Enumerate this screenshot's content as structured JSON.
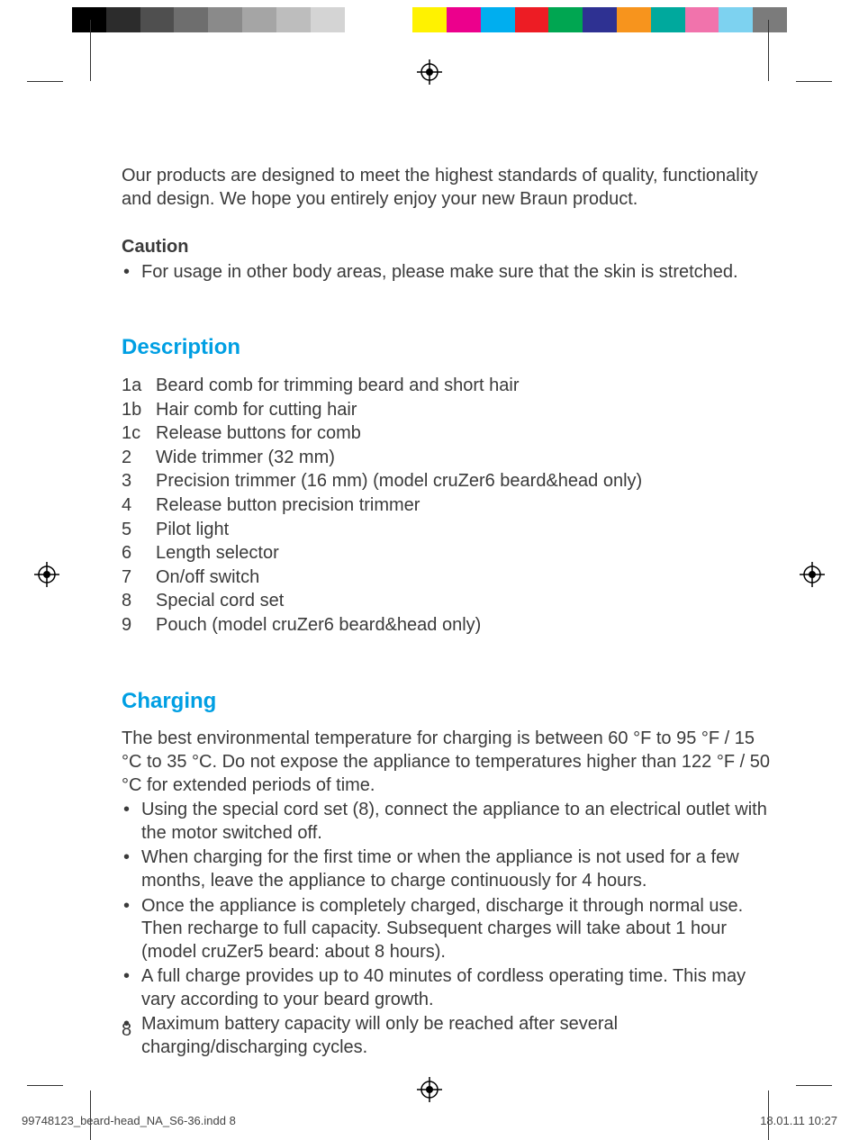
{
  "color_bar": {
    "swatches": [
      "#000000",
      "#2c2c2c",
      "#4f4f4f",
      "#6e6e6e",
      "#8a8a8a",
      "#a5a5a5",
      "#bdbdbd",
      "#d4d4d4",
      "#ffffff",
      "#ffffff",
      "#fff200",
      "#ec008c",
      "#00aeef",
      "#ed1c24",
      "#00a651",
      "#2e3192",
      "#f7941d",
      "#00a99d",
      "#f173ac",
      "#7dd2f0",
      "#7b7b7b"
    ]
  },
  "intro": "Our products are designed to meet the highest standards of quality, functionality and design. We hope you entirely enjoy your new Braun product.",
  "caution": {
    "title": "Caution",
    "items": [
      "For usage in other body areas, please make sure that the skin is stretched."
    ]
  },
  "description": {
    "heading": "Description",
    "items": [
      {
        "k": "1a",
        "v": "Beard comb for trimming beard and short hair"
      },
      {
        "k": "1b",
        "v": "Hair comb for cutting hair"
      },
      {
        "k": "1c",
        "v": "Release buttons for comb"
      },
      {
        "k": "2",
        "v": "Wide trimmer (32 mm)"
      },
      {
        "k": "3",
        "v": "Precision trimmer (16 mm) (model cruZer6 beard&head only)"
      },
      {
        "k": "4",
        "v": "Release button precision trimmer"
      },
      {
        "k": "5",
        "v": "Pilot light"
      },
      {
        "k": "6",
        "v": "Length selector"
      },
      {
        "k": "7",
        "v": "On/off switch"
      },
      {
        "k": "8",
        "v": "Special cord set"
      },
      {
        "k": "9",
        "v": "Pouch (model cruZer6 beard&head only)"
      }
    ]
  },
  "charging": {
    "heading": "Charging",
    "intro": "The best environmental temperature for charging is between 60 °F to 95 °F / 15 °C to 35 °C. Do not expose the appliance to temperatures higher than 122 °F / 50 °C for extended periods of time.",
    "items": [
      "Using the special cord set (8), connect the appliance to an electrical outlet with the motor switched off.",
      "When charging for the first time or when the appliance is not used for a few months, leave the appliance to charge continuously for 4 hours.",
      "Once the appliance is completely charged, discharge it through normal use. Then recharge to full capacity. Subsequent charges will take about 1 hour (model cruZer5 beard: about 8 hours).",
      "A full charge provides up to 40 minutes of cordless operating time. This may vary according to your beard growth.",
      "Maximum battery capacity will only be reached after several charging/discharging cycles."
    ]
  },
  "page_number": "8",
  "footer": {
    "file": "99748123_beard-head_NA_S6-36.indd   8",
    "timestamp": "18.01.11   10:27"
  },
  "style": {
    "heading_color": "#009fe3",
    "text_color": "#3a3a3a",
    "body_fontsize": 20,
    "heading_fontsize": 24
  }
}
